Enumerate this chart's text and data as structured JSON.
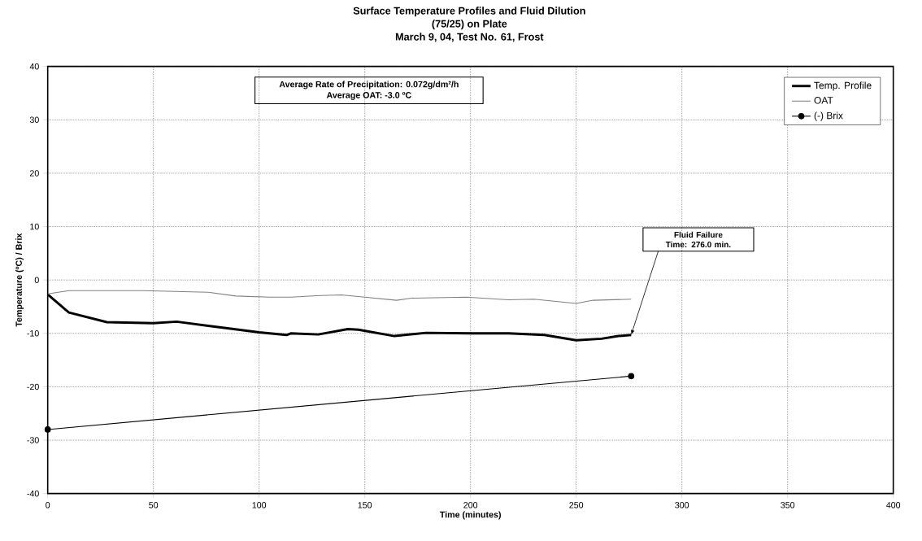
{
  "chart_data": {
    "type": "line",
    "title": "Surface Temperature Profiles and Fluid Dilution",
    "subtitle": "(75/25) on Plate",
    "xlabel": "Time (minutes)",
    "ylabel": "Temperature (ºC) / Brix",
    "xlim": [
      0,
      400
    ],
    "xticks": [
      0,
      50,
      100,
      150,
      200,
      250,
      300,
      350,
      400
    ],
    "ylim": [
      -40,
      40
    ],
    "yticks": [
      -40,
      -30,
      -20,
      -10,
      0,
      10,
      20,
      30,
      40
    ],
    "grid": true,
    "legend": "top right",
    "annotations": [
      "March 9, 04, Test No. 61, Frost",
      "Average Rate of Precipitation:  0.072g/dm²/h",
      "Average OAT: -3.0 ºC",
      {
        "text": "Fluid Failure Time: 276.0 min.",
        "x": 276,
        "y": -10.3
      }
    ],
    "series": [
      {
        "name": "Temp. Profile",
        "color": "#000000",
        "marker": "none",
        "x": [
          0,
          10,
          28,
          50,
          61,
          82,
          100,
          113,
          115,
          128,
          142,
          147,
          164,
          179,
          200,
          218,
          235,
          250,
          262,
          270,
          276
        ],
        "values": [
          -2.7,
          -6.1,
          -7.9,
          -8.1,
          -7.8,
          -8.9,
          -9.8,
          -10.3,
          -10.0,
          -10.2,
          -9.2,
          -9.3,
          -10.5,
          -9.9,
          -10.0,
          -10.0,
          -10.3,
          -11.3,
          -11.0,
          -10.5,
          -10.3
        ]
      },
      {
        "name": "OAT",
        "color": "#808080",
        "marker": "none",
        "x": [
          0,
          10,
          45,
          76,
          89,
          105,
          115,
          129,
          139,
          150,
          165,
          172,
          198,
          218,
          230,
          250,
          258,
          276
        ],
        "values": [
          -2.6,
          -2.0,
          -2.0,
          -2.3,
          -3.0,
          -3.2,
          -3.2,
          -2.9,
          -2.8,
          -3.2,
          -3.8,
          -3.4,
          -3.2,
          -3.7,
          -3.6,
          -4.4,
          -3.8,
          -3.6
        ]
      },
      {
        "name": "(-) Brix",
        "color": "#000000",
        "marker": "circle",
        "x": [
          0,
          276
        ],
        "values": [
          -28,
          -18
        ]
      }
    ]
  }
}
